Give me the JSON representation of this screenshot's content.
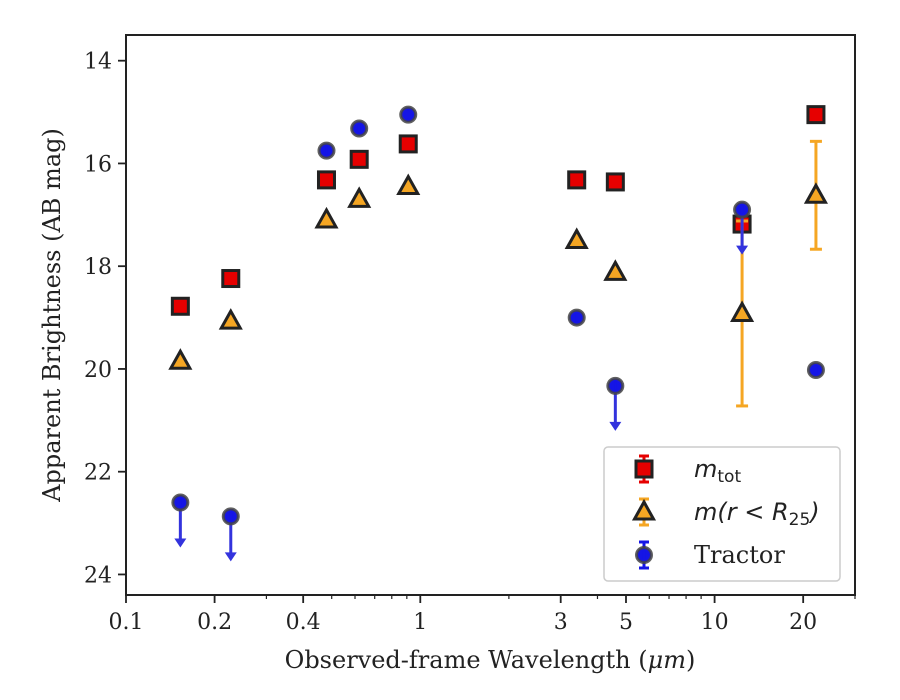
{
  "chart_data": {
    "type": "scatter",
    "xlabel_prefix": "Observed-frame Wavelength (",
    "xlabel_unit": "μm",
    "xlabel_suffix": ")",
    "ylabel": "Apparent Brightness (AB mag)",
    "x_scale": "log",
    "xlim": [
      0.1,
      30
    ],
    "ylim": [
      24.4,
      13.5
    ],
    "y_inverted": true,
    "grid": false,
    "legend_position": "lower-right",
    "x_ticks": [
      {
        "value": 0.1,
        "label": "0.1"
      },
      {
        "value": 0.2,
        "label": "0.2"
      },
      {
        "value": 0.4,
        "label": "0.4"
      },
      {
        "value": 1,
        "label": "1"
      },
      {
        "value": 3,
        "label": "3"
      },
      {
        "value": 5,
        "label": "5"
      },
      {
        "value": 10,
        "label": "10"
      },
      {
        "value": 20,
        "label": "20"
      }
    ],
    "y_ticks": [
      {
        "value": 14,
        "label": "14"
      },
      {
        "value": 16,
        "label": "16"
      },
      {
        "value": 18,
        "label": "18"
      },
      {
        "value": 20,
        "label": "20"
      },
      {
        "value": 22,
        "label": "22"
      },
      {
        "value": 24,
        "label": "24"
      }
    ],
    "series": [
      {
        "name": "m_tot",
        "legend_main": "m",
        "legend_sub": "tot",
        "marker": "square",
        "color": "#e60000",
        "edge_color": "#222222",
        "points": [
          {
            "x": 0.153,
            "y": 18.78
          },
          {
            "x": 0.227,
            "y": 18.24
          },
          {
            "x": 0.48,
            "y": 16.32
          },
          {
            "x": 0.62,
            "y": 15.92
          },
          {
            "x": 0.91,
            "y": 15.62
          },
          {
            "x": 3.4,
            "y": 16.32
          },
          {
            "x": 4.6,
            "y": 16.36
          },
          {
            "x": 12.4,
            "y": 17.18
          },
          {
            "x": 22.1,
            "y": 15.05
          }
        ]
      },
      {
        "name": "m(r < R25)",
        "legend_main": "m(r < R",
        "legend_sub": "25",
        "legend_end": ")",
        "marker": "triangle",
        "color": "#f5a623",
        "edge_color": "#222222",
        "error_color": "#f5a623",
        "points": [
          {
            "x": 0.153,
            "y": 19.85
          },
          {
            "x": 0.227,
            "y": 19.07
          },
          {
            "x": 0.48,
            "y": 17.1
          },
          {
            "x": 0.62,
            "y": 16.7
          },
          {
            "x": 0.91,
            "y": 16.45
          },
          {
            "x": 3.4,
            "y": 17.5
          },
          {
            "x": 4.6,
            "y": 18.12
          },
          {
            "x": 12.4,
            "y": 18.92,
            "err": 1.8
          },
          {
            "x": 22.1,
            "y": 16.62,
            "err": 1.05
          }
        ]
      },
      {
        "name": "Tractor",
        "legend_main": "Tractor",
        "marker": "circle",
        "color": "#1515e6",
        "edge_color": "#444444",
        "arrow_color": "#3333dd",
        "points": [
          {
            "x": 0.153,
            "y": 22.6,
            "upper_limit": true
          },
          {
            "x": 0.227,
            "y": 22.87,
            "upper_limit": true
          },
          {
            "x": 0.48,
            "y": 15.75
          },
          {
            "x": 0.62,
            "y": 15.32
          },
          {
            "x": 0.91,
            "y": 15.05
          },
          {
            "x": 3.4,
            "y": 19.0
          },
          {
            "x": 4.6,
            "y": 20.33,
            "upper_limit": true
          },
          {
            "x": 12.4,
            "y": 16.9,
            "upper_limit": true
          },
          {
            "x": 22.1,
            "y": 20.02
          }
        ]
      }
    ]
  }
}
